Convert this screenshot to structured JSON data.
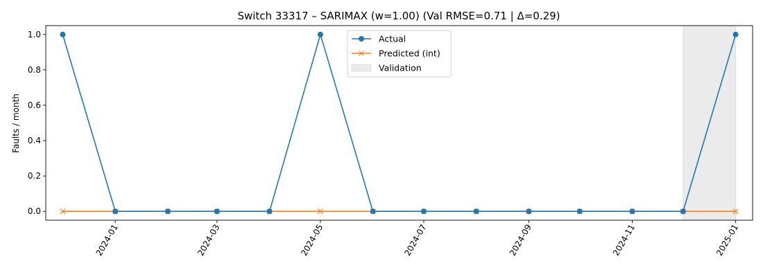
{
  "chart_data": {
    "type": "line",
    "title": "Switch 33317 – SARIMAX (w=1.00) (Val RMSE=0.71 | Δ=0.29)",
    "xlabel": "",
    "ylabel": "Faults / month",
    "x": [
      "2023-12-01",
      "2024-01-01",
      "2024-02-01",
      "2024-03-01",
      "2024-04-01",
      "2024-05-01",
      "2024-06-01",
      "2024-07-01",
      "2024-08-01",
      "2024-09-01",
      "2024-10-01",
      "2024-11-01",
      "2024-12-01",
      "2025-01-01"
    ],
    "series": [
      {
        "name": "Actual",
        "color": "#1f77b4",
        "marker": "circle",
        "values": [
          1,
          0,
          0,
          0,
          0,
          1,
          0,
          0,
          0,
          0,
          0,
          0,
          0,
          1
        ]
      },
      {
        "name": "Predicted (int)",
        "color": "#ff7f0e",
        "marker": "x",
        "values": [
          0,
          0,
          0,
          0,
          0,
          0,
          0,
          0,
          0,
          0,
          0,
          0,
          0,
          0
        ]
      }
    ],
    "validation": {
      "name": "Validation",
      "start": "2024-12-01",
      "end": "2025-01-01",
      "color": "#d3d3d3"
    },
    "x_ticks": [
      "2024-01",
      "2024-03",
      "2024-05",
      "2024-07",
      "2024-09",
      "2024-11",
      "2025-01"
    ],
    "x_tick_dates": [
      "2024-01-01",
      "2024-03-01",
      "2024-05-01",
      "2024-07-01",
      "2024-09-01",
      "2024-11-01",
      "2025-01-01"
    ],
    "y_ticks": [
      "0.0",
      "0.2",
      "0.4",
      "0.6",
      "0.8",
      "1.0"
    ],
    "xlim": [
      "2023-11-21",
      "2025-01-11"
    ],
    "ylim": [
      -0.05,
      1.05
    ],
    "grid": false,
    "legend_position": "upper-center"
  }
}
